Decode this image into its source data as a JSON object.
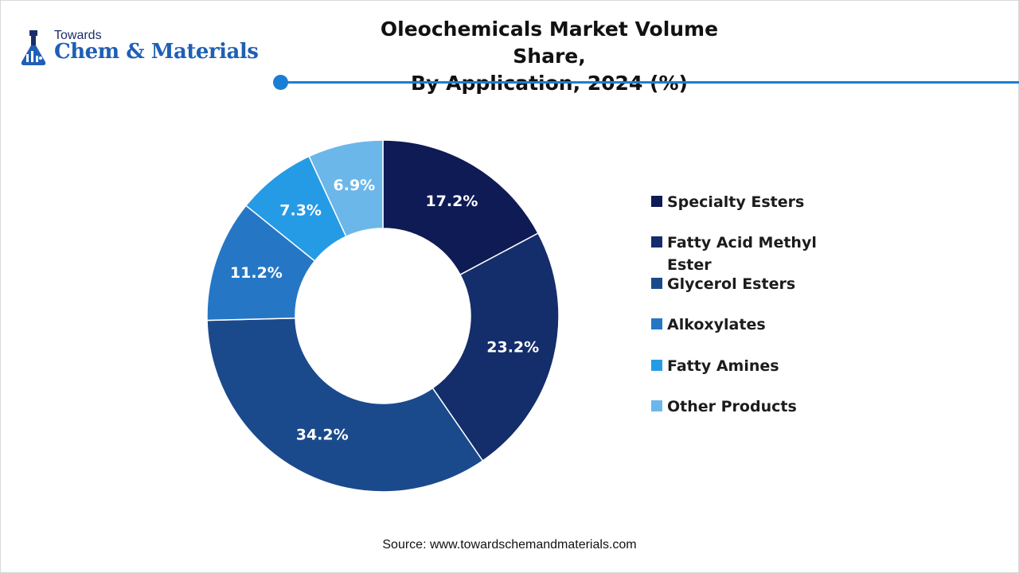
{
  "brand": {
    "top_text": "Towards",
    "main_text": "Chem & Materials",
    "icon": "flask-icon"
  },
  "header": {
    "title_line1": "Oleochemicals Market Volume Share,",
    "title_line2": "By Application, 2024 (%)"
  },
  "colors": {
    "accent": "#1a7fd4"
  },
  "source": "Source: www.towardschemandmaterials.com",
  "chart_data": {
    "type": "pie",
    "variant": "donut",
    "title": "Oleochemicals Market Volume Share, By Application, 2024 (%)",
    "legend_position": "right",
    "slices": [
      {
        "name": "Specialty Esters",
        "value": 17.2,
        "label": "17.2%",
        "color": "#0f1b54"
      },
      {
        "name": "Fatty Acid Methyl Ester",
        "value": 23.2,
        "label": "23.2%",
        "color": "#142d6b"
      },
      {
        "name": "Glycerol Esters",
        "value": 34.2,
        "label": "34.2%",
        "color": "#1b4a8c"
      },
      {
        "name": "Alkoxylates",
        "value": 11.2,
        "label": "11.2%",
        "color": "#2577c5"
      },
      {
        "name": "Fatty Amines",
        "value": 7.3,
        "label": "7.3%",
        "color": "#259be6"
      },
      {
        "name": "Other Products",
        "value": 6.9,
        "label": "6.9%",
        "color": "#6cb7ea"
      }
    ]
  }
}
